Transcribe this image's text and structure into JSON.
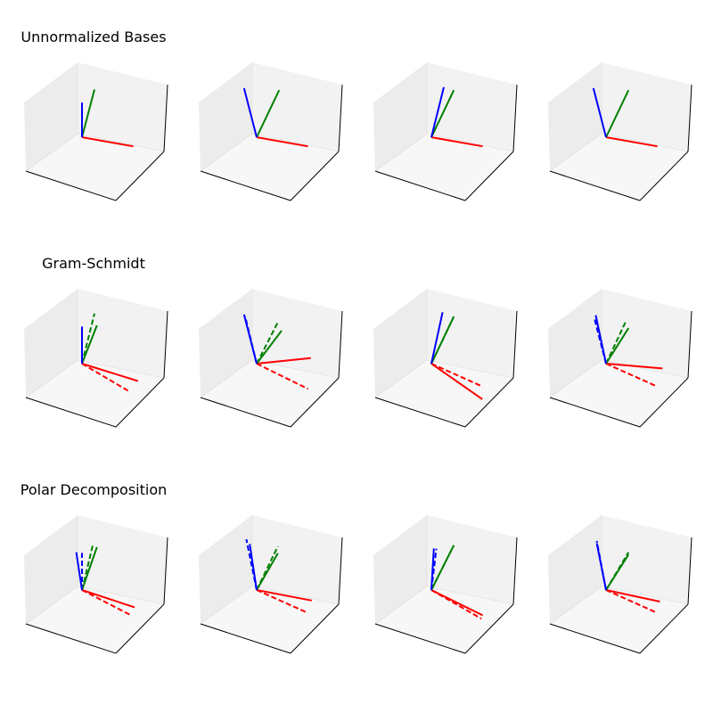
{
  "figure": {
    "rows": [
      {
        "title": "Unnormalized Bases",
        "key": "unnormalized"
      },
      {
        "title": "Gram-Schmidt",
        "key": "gram_schmidt"
      },
      {
        "title": "Polar Decomposition",
        "key": "polar"
      }
    ]
  },
  "colors": {
    "x_axis_vector": "#ff0000",
    "y_axis_vector": "#008000",
    "z_axis_vector": "#0000ff",
    "pane_floor": "#f2f2f2",
    "pane_wall": "#ececec",
    "axis_line": "#000000"
  },
  "chart_data": {
    "type": "3d-vector-grid",
    "grid": {
      "rows": 3,
      "cols": 4
    },
    "axes": {
      "xlim": [
        -1,
        1
      ],
      "ylim": [
        -1,
        1
      ],
      "zlim": [
        -1,
        1
      ],
      "ticks": "none",
      "grid": false
    },
    "panels": [
      {
        "row": 0,
        "col": 0,
        "solid": [
          {
            "color": "red",
            "vector": [
              1.0,
              0.2,
              0.0
            ]
          },
          {
            "color": "green",
            "vector": [
              0.0,
              0.5,
              0.8
            ]
          },
          {
            "color": "blue",
            "vector": [
              0.0,
              0.0,
              0.75
            ]
          }
        ],
        "dashed": []
      },
      {
        "row": 0,
        "col": 1,
        "solid": [
          {
            "color": "red",
            "vector": [
              1.0,
              0.2,
              0.0
            ]
          },
          {
            "color": "green",
            "vector": [
              0.0,
              0.9,
              0.6
            ]
          },
          {
            "color": "blue",
            "vector": [
              -0.3,
              0.05,
              0.95
            ]
          }
        ],
        "dashed": []
      },
      {
        "row": 0,
        "col": 2,
        "solid": [
          {
            "color": "red",
            "vector": [
              1.0,
              0.2,
              0.0
            ]
          },
          {
            "color": "green",
            "vector": [
              0.0,
              0.9,
              0.6
            ]
          },
          {
            "color": "blue",
            "vector": [
              0.0,
              0.5,
              0.85
            ]
          }
        ],
        "dashed": []
      },
      {
        "row": 0,
        "col": 3,
        "solid": [
          {
            "color": "red",
            "vector": [
              1.0,
              0.2,
              0.0
            ]
          },
          {
            "color": "green",
            "vector": [
              0.0,
              0.9,
              0.6
            ]
          },
          {
            "color": "blue",
            "vector": [
              -0.3,
              0.05,
              0.95
            ]
          }
        ],
        "dashed": []
      },
      {
        "row": 1,
        "col": 0,
        "solid": [
          {
            "color": "red",
            "vector": [
              1.1,
              0.2,
              -0.15
            ]
          },
          {
            "color": "green",
            "vector": [
              0.0,
              0.6,
              0.55
            ]
          },
          {
            "color": "blue",
            "vector": [
              0.0,
              0.0,
              0.8
            ]
          }
        ],
        "dashed": [
          {
            "color": "red",
            "vector": [
              1.0,
              0.0,
              -0.3
            ]
          },
          {
            "color": "green",
            "vector": [
              0.0,
              0.5,
              0.85
            ]
          }
        ]
      },
      {
        "row": 1,
        "col": 1,
        "solid": [
          {
            "color": "red",
            "vector": [
              0.9,
              0.5,
              0.15
            ]
          },
          {
            "color": "green",
            "vector": [
              0.0,
              1.0,
              0.25
            ]
          },
          {
            "color": "blue",
            "vector": [
              -0.3,
              0.05,
              0.95
            ]
          }
        ],
        "dashed": [
          {
            "color": "red",
            "vector": [
              1.0,
              0.2,
              -0.35
            ]
          },
          {
            "color": "green",
            "vector": [
              0.0,
              0.85,
              0.5
            ]
          },
          {
            "color": "blue",
            "vector": [
              -0.25,
              0.0,
              0.95
            ]
          }
        ]
      },
      {
        "row": 1,
        "col": 2,
        "solid": [
          {
            "color": "red",
            "vector": [
              1.1,
              0.0,
              -0.45
            ]
          },
          {
            "color": "green",
            "vector": [
              0.0,
              0.9,
              0.6
            ]
          },
          {
            "color": "blue",
            "vector": [
              0.0,
              0.45,
              0.9
            ]
          }
        ],
        "dashed": [
          {
            "color": "red",
            "vector": [
              1.0,
              0.2,
              -0.3
            ]
          },
          {
            "color": "green",
            "vector": [
              0.0,
              0.9,
              0.6
            ]
          }
        ]
      },
      {
        "row": 1,
        "col": 3,
        "solid": [
          {
            "color": "red",
            "vector": [
              1.0,
              0.4,
              0.0
            ]
          },
          {
            "color": "green",
            "vector": [
              0.0,
              0.9,
              0.35
            ]
          },
          {
            "color": "blue",
            "vector": [
              -0.25,
              0.05,
              0.95
            ]
          }
        ],
        "dashed": [
          {
            "color": "red",
            "vector": [
              1.0,
              0.2,
              -0.3
            ]
          },
          {
            "color": "green",
            "vector": [
              0.0,
              0.8,
              0.55
            ]
          },
          {
            "color": "blue",
            "vector": [
              -0.25,
              0.0,
              0.9
            ]
          }
        ]
      },
      {
        "row": 2,
        "col": 0,
        "solid": [
          {
            "color": "red",
            "vector": [
              1.0,
              0.25,
              -0.2
            ]
          },
          {
            "color": "green",
            "vector": [
              0.0,
              0.6,
              0.65
            ]
          },
          {
            "color": "blue",
            "vector": [
              -0.15,
              0.05,
              0.75
            ]
          }
        ],
        "dashed": [
          {
            "color": "red",
            "vector": [
              1.0,
              0.1,
              -0.3
            ]
          },
          {
            "color": "green",
            "vector": [
              0.0,
              0.45,
              0.8
            ]
          },
          {
            "color": "blue",
            "vector": [
              0.0,
              0.0,
              0.8
            ]
          }
        ]
      },
      {
        "row": 2,
        "col": 1,
        "solid": [
          {
            "color": "red",
            "vector": [
              1.0,
              0.35,
              -0.1
            ]
          },
          {
            "color": "green",
            "vector": [
              0.0,
              0.85,
              0.4
            ]
          },
          {
            "color": "blue",
            "vector": [
              -0.15,
              0.0,
              0.95
            ]
          }
        ],
        "dashed": [
          {
            "color": "red",
            "vector": [
              1.0,
              0.2,
              -0.3
            ]
          },
          {
            "color": "green",
            "vector": [
              0.0,
              0.85,
              0.55
            ]
          },
          {
            "color": "blue",
            "vector": [
              -0.25,
              0.05,
              1.0
            ]
          }
        ]
      },
      {
        "row": 2,
        "col": 2,
        "solid": [
          {
            "color": "red",
            "vector": [
              1.0,
              0.2,
              -0.35
            ]
          },
          {
            "color": "green",
            "vector": [
              0.0,
              0.9,
              0.55
            ]
          },
          {
            "color": "blue",
            "vector": [
              0.0,
              0.1,
              0.85
            ]
          }
        ],
        "dashed": [
          {
            "color": "red",
            "vector": [
              1.0,
              0.15,
              -0.4
            ]
          },
          {
            "color": "green",
            "vector": [
              0.0,
              0.9,
              0.55
            ]
          },
          {
            "color": "blue",
            "vector": [
              0.0,
              0.2,
              0.8
            ]
          }
        ]
      },
      {
        "row": 2,
        "col": 3,
        "solid": [
          {
            "color": "red",
            "vector": [
              1.0,
              0.3,
              -0.1
            ]
          },
          {
            "color": "green",
            "vector": [
              0.0,
              0.9,
              0.35
            ]
          },
          {
            "color": "blue",
            "vector": [
              -0.2,
              0.0,
              0.95
            ]
          }
        ],
        "dashed": [
          {
            "color": "red",
            "vector": [
              1.0,
              0.2,
              -0.3
            ]
          },
          {
            "color": "green",
            "vector": [
              0.0,
              0.9,
              0.4
            ]
          },
          {
            "color": "blue",
            "vector": [
              -0.2,
              0.0,
              1.0
            ]
          }
        ]
      }
    ]
  }
}
